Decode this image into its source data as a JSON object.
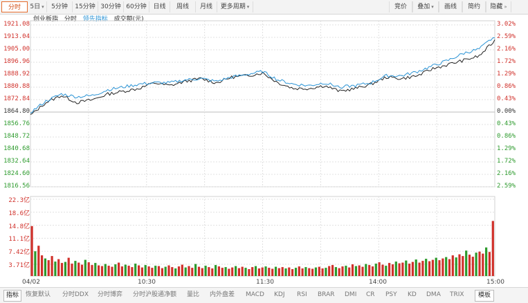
{
  "toolbar": {
    "left": [
      {
        "label": "分时",
        "active": true,
        "caret": false
      },
      {
        "label": "5日",
        "active": false,
        "caret": true
      },
      {
        "label": "5分钟",
        "active": false,
        "caret": false
      },
      {
        "label": "15分钟",
        "active": false,
        "caret": false
      },
      {
        "label": "30分钟",
        "active": false,
        "caret": false
      },
      {
        "label": "60分钟",
        "active": false,
        "caret": false
      },
      {
        "label": "日线",
        "active": false,
        "caret": false
      },
      {
        "label": "周线",
        "active": false,
        "caret": false
      },
      {
        "label": "月线",
        "active": false,
        "caret": false
      },
      {
        "label": "更多周期",
        "active": false,
        "caret": true
      }
    ],
    "right": [
      {
        "label": "竞价",
        "caret": false
      },
      {
        "label": "叠加",
        "caret": true
      },
      {
        "label": "画线",
        "caret": false
      },
      {
        "label": "简约",
        "caret": false
      },
      {
        "label": "隐藏",
        "caret": false,
        "suffix": "»"
      }
    ]
  },
  "legend": {
    "name": "创业板指",
    "mode": "分时",
    "leader": "领先指标",
    "volume": "成交额(元)"
  },
  "colors": {
    "price": "#222222",
    "leader": "#2a93d5",
    "up": "#d0302a",
    "down": "#2c9a2c",
    "grid": "#e0e0e0"
  },
  "price_axis": {
    "left": [
      "1921.08",
      "1913.04",
      "1905.00",
      "1896.96",
      "1888.92",
      "1880.88",
      "1872.84",
      "1864.80",
      "1856.76",
      "1848.72",
      "1840.68",
      "1832.64",
      "1824.60",
      "1816.56"
    ],
    "right": [
      "3.02%",
      "2.59%",
      "2.16%",
      "1.72%",
      "1.29%",
      "0.86%",
      "0.43%",
      "0.00%",
      "0.43%",
      "0.86%",
      "1.29%",
      "1.72%",
      "2.16%",
      "2.59%"
    ]
  },
  "volume_axis": [
    "22.3亿",
    "18.6亿",
    "14.8亿",
    "11.1亿",
    "7.42亿",
    "3.71亿"
  ],
  "time_axis": [
    "04/02",
    "10:30",
    "11:30",
    "14:00",
    "15:00"
  ],
  "bottom_tabs": [
    "指标",
    "恢复默认",
    "分时DDX",
    "分时博弈",
    "分时沪股通净额",
    "量比",
    "内外盘差",
    "MACD",
    "KDJ",
    "RSI",
    "BRAR",
    "DMI",
    "CR",
    "PSY",
    "KD",
    "DMA",
    "TRIX"
  ],
  "bottom_right": "模板",
  "chart_data": {
    "type": "line",
    "base": 1864.8,
    "ylim": [
      1812.52,
      1925.12
    ],
    "x_minutes": [
      0,
      8,
      16,
      24,
      32,
      40,
      48,
      56,
      64,
      72,
      80,
      88,
      96,
      104,
      112,
      120,
      128,
      136,
      144,
      152,
      160,
      168,
      176,
      184,
      192,
      200,
      208,
      216,
      224,
      232,
      240
    ],
    "series": [
      {
        "key": "price",
        "values": [
          1857,
          1866,
          1871,
          1866,
          1868,
          1872,
          1874,
          1876,
          1880,
          1878,
          1881,
          1883,
          1880,
          1884,
          1885,
          1887,
          1880,
          1876,
          1876,
          1878,
          1874,
          1876,
          1879,
          1884,
          1883,
          1885,
          1890,
          1893,
          1896,
          1899,
          1910
        ]
      },
      {
        "key": "leader",
        "values": [
          1859,
          1867,
          1872,
          1870,
          1871,
          1875,
          1877,
          1879,
          1880,
          1880,
          1882,
          1883,
          1881,
          1884,
          1886,
          1888,
          1882,
          1879,
          1878,
          1880,
          1877,
          1878,
          1880,
          1885,
          1885,
          1888,
          1892,
          1896,
          1901,
          1904,
          1913
        ]
      }
    ],
    "volume_ylim": [
      0,
      22.3
    ],
    "volume_values": [
      14.5,
      7.2,
      8.8,
      6.0,
      5.1,
      4.6,
      5.8,
      4.2,
      4.9,
      3.8,
      4.1,
      5.3,
      3.6,
      4.4,
      3.9,
      3.3,
      4.7,
      4.0,
      3.2,
      3.8,
      3.1,
      2.9,
      3.5,
      3.0,
      2.7,
      3.4,
      3.9,
      2.8,
      3.3,
      3.0,
      2.6,
      3.6,
      3.1,
      2.5,
      3.2,
      2.8,
      2.4,
      3.0,
      2.9,
      2.3,
      2.7,
      3.1,
      2.6,
      2.2,
      2.8,
      3.3,
      2.5,
      2.9,
      2.4,
      3.5,
      2.7,
      2.3,
      3.0,
      2.6,
      2.2,
      3.2,
      2.8,
      2.4,
      2.6,
      2.1,
      2.5,
      2.9,
      2.3,
      2.7,
      2.4,
      2.0,
      2.6,
      2.9,
      2.2,
      2.5,
      2.8,
      2.4,
      2.1,
      2.7,
      2.3,
      2.6,
      2.2,
      2.5,
      2.0,
      2.4,
      2.8,
      2.2,
      2.6,
      2.3,
      2.1,
      2.5,
      2.7,
      2.2,
      2.4,
      2.9,
      3.2,
      2.6,
      2.3,
      2.8,
      3.0,
      2.5,
      3.4,
      2.9,
      3.1,
      2.7,
      3.5,
      3.2,
      2.8,
      3.6,
      4.0,
      3.3,
      3.0,
      3.8,
      3.4,
      4.2,
      3.7,
      3.9,
      4.5,
      3.6,
      4.1,
      4.8,
      3.9,
      4.4,
      5.0,
      4.3,
      4.7,
      5.3,
      4.6,
      5.1,
      5.5,
      4.9,
      6.0,
      5.4,
      6.3,
      5.8,
      7.4,
      6.2,
      5.6,
      6.8,
      7.1,
      6.5,
      8.3,
      7.0,
      16.0
    ]
  }
}
